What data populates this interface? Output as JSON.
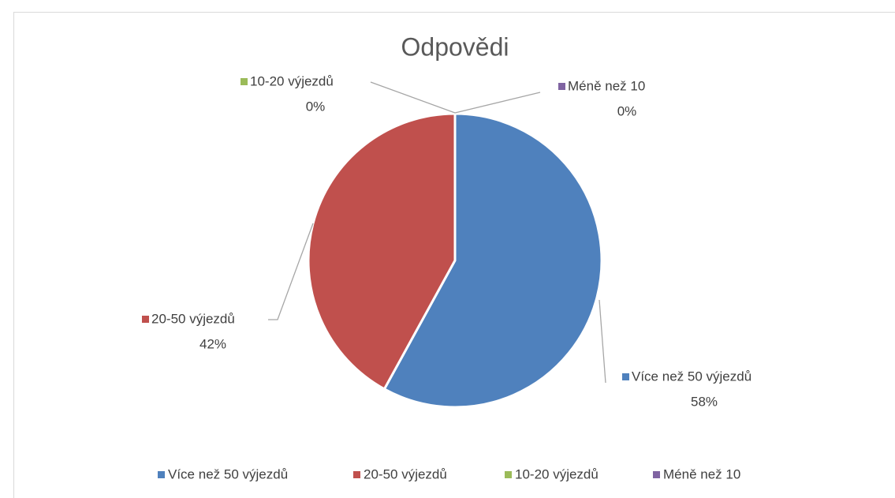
{
  "chart_data": {
    "type": "pie",
    "title": "Odpovědi",
    "categories": [
      "Více než 50 výjezdů",
      "20-50 výjezdů",
      "10-20 výjezdů",
      "Méně než 10"
    ],
    "values": [
      58,
      42,
      0,
      0
    ],
    "value_labels": [
      "58%",
      "42%",
      "0%",
      "0%"
    ],
    "colors": [
      "#4f81bd",
      "#c0504d",
      "#9bbb59",
      "#8064a2"
    ],
    "legend": "bottom"
  }
}
